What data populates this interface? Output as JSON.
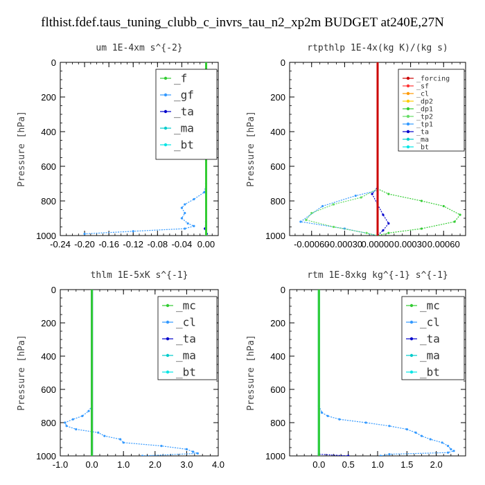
{
  "figure_title": "flthist.fdef.taus_tuning_clubb_c_invrs_tau_n2_xp2m  BUDGET at240E,27N",
  "chart_data": [
    {
      "type": "line",
      "title": "um  1E-4xm s^{-2}",
      "ylabel": "Pressure [hPa]",
      "xlim": [
        -0.24,
        0.02
      ],
      "ylim": [
        1000,
        0
      ],
      "xticks": [
        -0.24,
        -0.2,
        -0.16,
        -0.12,
        -0.08,
        -0.04,
        0.0
      ],
      "xtick_labels": [
        "-0.24",
        "-0.20",
        "-0.16",
        "-0.12",
        "-0.08",
        "-0.04",
        "0.00"
      ],
      "yticks": [
        0,
        200,
        400,
        600,
        800,
        1000
      ],
      "ytick_labels": [
        "0",
        "200",
        "400",
        "600",
        "800",
        "1000"
      ],
      "legend_position": "top-right",
      "series": [
        {
          "name": "_f",
          "color": "#33cc33",
          "points": [
            [
              0.0,
              0
            ],
            [
              0.0,
              1000
            ]
          ]
        },
        {
          "name": "_gf",
          "color": "#3399ff",
          "points": [
            [
              0.0,
              0
            ],
            [
              0.0,
              700
            ],
            [
              -0.003,
              750
            ],
            [
              -0.02,
              790
            ],
            [
              -0.035,
              820
            ],
            [
              -0.04,
              840
            ],
            [
              -0.035,
              870
            ],
            [
              -0.04,
              900
            ],
            [
              -0.03,
              930
            ],
            [
              -0.02,
              945
            ],
            [
              -0.035,
              960
            ],
            [
              -0.12,
              975
            ],
            [
              -0.2,
              990
            ]
          ]
        },
        {
          "name": "_ta",
          "color": "#0000cc",
          "points": [
            [
              0.0,
              0
            ],
            [
              0.0,
              920
            ],
            [
              -0.002,
              960
            ],
            [
              0.001,
              990
            ]
          ]
        },
        {
          "name": "_ma",
          "color": "#00cccc",
          "points": [
            [
              0.0,
              0
            ],
            [
              0.0,
              1000
            ]
          ]
        },
        {
          "name": "_bt",
          "color": "#00e5e5",
          "points": [
            [
              0.0,
              0
            ],
            [
              0.0,
              1000
            ]
          ]
        }
      ]
    },
    {
      "type": "line",
      "title": "rtpthlp  1E-4x(kg K)/(kg s)",
      "ylabel": "Pressure [hPa]",
      "xlim": [
        -0.0008,
        0.0008
      ],
      "ylim": [
        1000,
        0
      ],
      "xticks": [
        -0.0006,
        -0.0003,
        0.0,
        0.0003,
        0.0006
      ],
      "xtick_labels": [
        "-0.00060",
        "-0.00030",
        "0.00000",
        "0.00030",
        "0.00060"
      ],
      "yticks": [
        0,
        200,
        400,
        600,
        800,
        1000
      ],
      "ytick_labels": [
        "0",
        "200",
        "400",
        "600",
        "800",
        "1000"
      ],
      "legend_position": "top-right",
      "series": [
        {
          "name": "_forcing",
          "color": "#cc0000",
          "points": [
            [
              0.0,
              0
            ],
            [
              0.0,
              1000
            ]
          ]
        },
        {
          "name": "_sf",
          "color": "#ff3333",
          "points": [
            [
              0.0,
              0
            ],
            [
              0.0,
              1000
            ]
          ]
        },
        {
          "name": "_cl",
          "color": "#ff9900",
          "points": [
            [
              0.0,
              0
            ],
            [
              0.0,
              1000
            ]
          ]
        },
        {
          "name": "_dp2",
          "color": "#ffcc00",
          "points": [
            [
              0.0,
              0
            ],
            [
              0.0,
              1000
            ]
          ]
        },
        {
          "name": "_dp1",
          "color": "#33cc33",
          "points": [
            [
              0.0,
              0
            ],
            [
              0.0,
              730
            ],
            [
              0.0001,
              760
            ],
            [
              0.0004,
              800
            ],
            [
              0.0006,
              830
            ],
            [
              0.00075,
              880
            ],
            [
              0.0007,
              920
            ],
            [
              0.0004,
              960
            ],
            [
              0.0001,
              985
            ],
            [
              0.0,
              1000
            ]
          ]
        },
        {
          "name": "_tp2",
          "color": "#66dd66",
          "points": [
            [
              0.0,
              0
            ],
            [
              0.0,
              730
            ],
            [
              -0.00015,
              780
            ],
            [
              -0.0004,
              820
            ],
            [
              -0.0006,
              870
            ],
            [
              -0.00065,
              910
            ],
            [
              -0.0004,
              950
            ],
            [
              -0.0001,
              985
            ],
            [
              0.0,
              1000
            ]
          ]
        },
        {
          "name": "_tp1",
          "color": "#3399ff",
          "points": [
            [
              0.0,
              0
            ],
            [
              0.0,
              740
            ],
            [
              -0.0002,
              770
            ],
            [
              -0.0005,
              830
            ],
            [
              -0.0007,
              920
            ],
            [
              -0.0003,
              960
            ],
            [
              0.0,
              1000
            ]
          ]
        },
        {
          "name": "_ta",
          "color": "#0000cc",
          "points": [
            [
              0.0,
              0
            ],
            [
              0.0,
              720
            ],
            [
              -5e-05,
              760
            ],
            [
              0.0,
              820
            ],
            [
              5e-05,
              880
            ],
            [
              0.0001,
              930
            ],
            [
              5e-05,
              970
            ],
            [
              0.0,
              1000
            ]
          ]
        },
        {
          "name": "_ma",
          "color": "#00cccc",
          "points": [
            [
              0.0,
              0
            ],
            [
              0.0,
              1000
            ]
          ]
        },
        {
          "name": "_bt",
          "color": "#00e5e5",
          "points": [
            [
              0.0,
              0
            ],
            [
              0.0,
              1000
            ]
          ]
        }
      ]
    },
    {
      "type": "line",
      "title": "thlm  1E-5xK s^{-1}",
      "ylabel": "Pressure [hPa]",
      "xlim": [
        -1.0,
        4.0
      ],
      "ylim": [
        1000,
        0
      ],
      "xticks": [
        -1.0,
        0.0,
        1.0,
        2.0,
        3.0,
        4.0
      ],
      "xtick_labels": [
        "-1.0",
        "0.0",
        "1.0",
        "2.0",
        "3.0",
        "4.0"
      ],
      "yticks": [
        0,
        200,
        400,
        600,
        800,
        1000
      ],
      "ytick_labels": [
        "0",
        "200",
        "400",
        "600",
        "800",
        "1000"
      ],
      "legend_position": "top-right",
      "series": [
        {
          "name": "_mc",
          "color": "#33cc33",
          "points": [
            [
              0.0,
              0
            ],
            [
              0.0,
              1000
            ]
          ]
        },
        {
          "name": "_cl",
          "color": "#3399ff",
          "points": [
            [
              0.0,
              0
            ],
            [
              0.0,
              700
            ],
            [
              -0.1,
              730
            ],
            [
              -0.3,
              760
            ],
            [
              -0.6,
              780
            ],
            [
              -0.85,
              800
            ],
            [
              -0.8,
              820
            ],
            [
              -0.5,
              840
            ],
            [
              0.2,
              860
            ],
            [
              0.4,
              880
            ],
            [
              0.9,
              900
            ],
            [
              1.0,
              920
            ],
            [
              2.2,
              940
            ],
            [
              3.0,
              960
            ],
            [
              3.2,
              975
            ],
            [
              3.35,
              985
            ],
            [
              1.6,
              1000
            ]
          ]
        },
        {
          "name": "_ta",
          "color": "#0000cc",
          "points": [
            [
              0.0,
              0
            ],
            [
              0.0,
              1000
            ]
          ]
        },
        {
          "name": "_ma",
          "color": "#00cccc",
          "points": [
            [
              0.0,
              0
            ],
            [
              0.0,
              1000
            ]
          ]
        },
        {
          "name": "_bt",
          "color": "#00e5e5",
          "points": [
            [
              0.0,
              0
            ],
            [
              0.0,
              1000
            ]
          ]
        }
      ]
    },
    {
      "type": "line",
      "title": "rtm  1E-8xkg kg^{-1} s^{-1}",
      "ylabel": "Pressure [hPa]",
      "xlim": [
        -0.5,
        2.5
      ],
      "ylim": [
        1000,
        0
      ],
      "xticks": [
        0.0,
        0.5,
        1.0,
        1.5,
        2.0
      ],
      "xtick_labels": [
        "0.0",
        "0.5",
        "1.0",
        "1.5",
        "2.0"
      ],
      "yticks": [
        0,
        200,
        400,
        600,
        800,
        1000
      ],
      "ytick_labels": [
        "0",
        "200",
        "400",
        "600",
        "800",
        "1000"
      ],
      "legend_position": "top-right",
      "series": [
        {
          "name": "_mc",
          "color": "#33cc33",
          "points": [
            [
              0.0,
              0
            ],
            [
              0.0,
              1000
            ]
          ]
        },
        {
          "name": "_cl",
          "color": "#3399ff",
          "points": [
            [
              0.0,
              0
            ],
            [
              0.0,
              700
            ],
            [
              0.05,
              740
            ],
            [
              0.15,
              760
            ],
            [
              0.35,
              780
            ],
            [
              0.8,
              800
            ],
            [
              1.2,
              820
            ],
            [
              1.5,
              840
            ],
            [
              1.65,
              860
            ],
            [
              1.75,
              880
            ],
            [
              1.9,
              900
            ],
            [
              2.1,
              920
            ],
            [
              2.2,
              940
            ],
            [
              2.25,
              960
            ],
            [
              2.3,
              970
            ],
            [
              2.2,
              980
            ],
            [
              1.2,
              990
            ],
            [
              1.05,
              1000
            ]
          ]
        },
        {
          "name": "_ta",
          "color": "#0000cc",
          "points": [
            [
              0.0,
              0
            ],
            [
              0.0,
              990
            ],
            [
              0.5,
              1000
            ]
          ]
        },
        {
          "name": "_ma",
          "color": "#00cccc",
          "points": [
            [
              0.0,
              0
            ],
            [
              0.0,
              1000
            ]
          ]
        },
        {
          "name": "_bt",
          "color": "#00e5e5",
          "points": [
            [
              0.0,
              0
            ],
            [
              0.0,
              1000
            ]
          ]
        }
      ]
    }
  ]
}
